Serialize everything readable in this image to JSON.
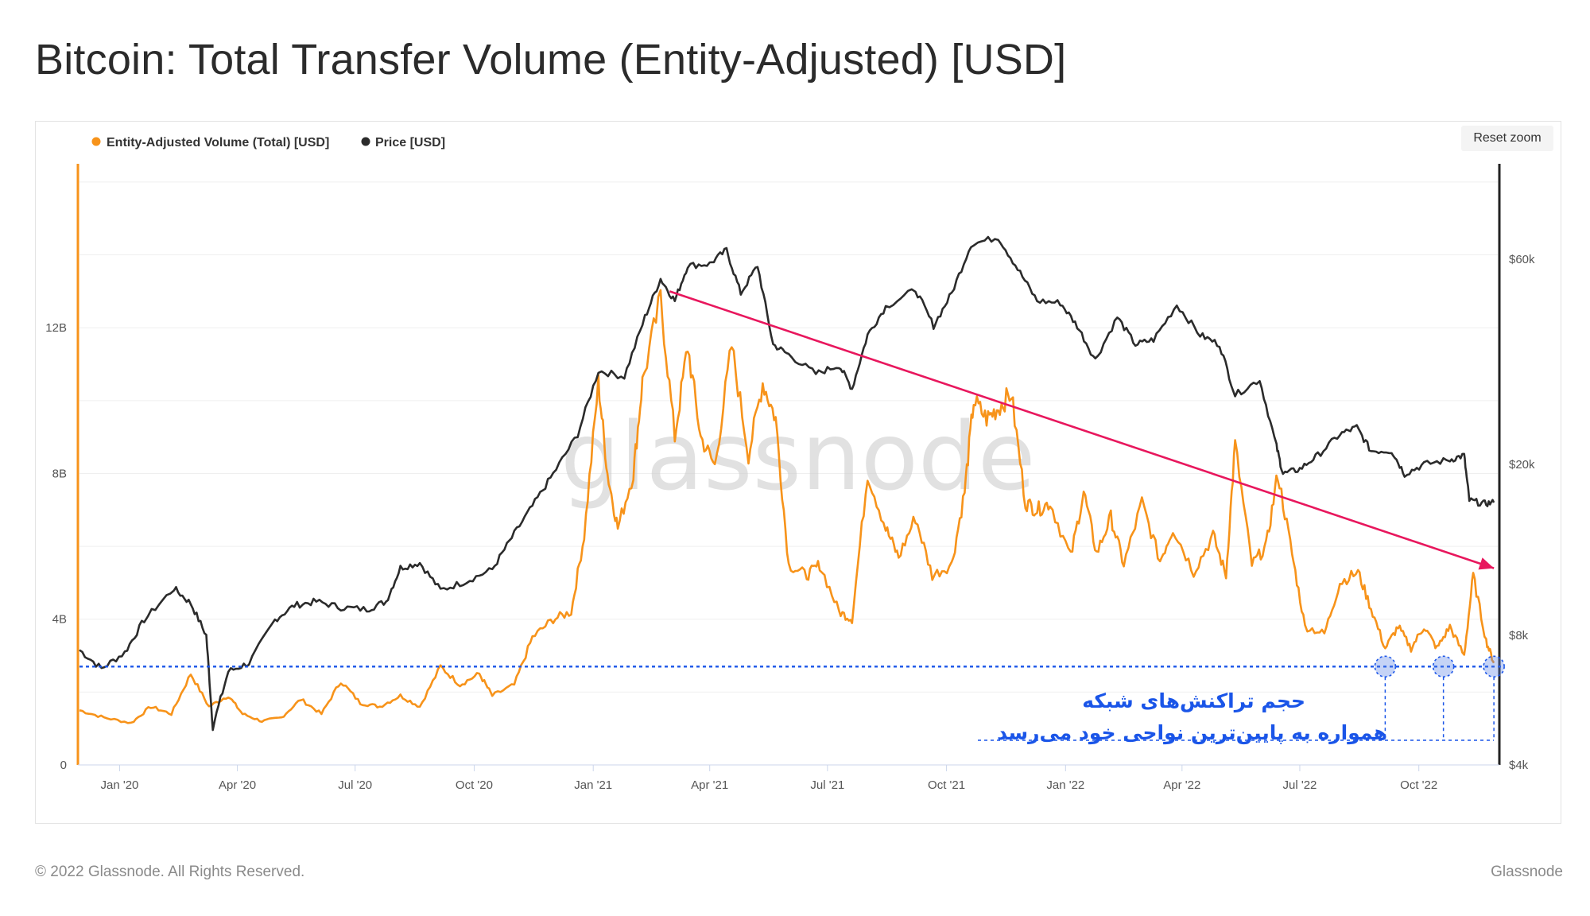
{
  "page": {
    "title": "Bitcoin: Total Transfer Volume (Entity-Adjusted) [USD]",
    "reset_zoom_label": "Reset zoom",
    "copyright": "© 2022 Glassnode. All Rights Reserved.",
    "brand": "Glassnode",
    "watermark": "glassnode"
  },
  "chart_data": {
    "type": "line",
    "title": "Bitcoin: Total Transfer Volume (Entity-Adjusted) [USD]",
    "x_ticks": [
      "Jan '20",
      "Apr '20",
      "Jul '20",
      "Oct '20",
      "Jan '21",
      "Apr '21",
      "Jul '21",
      "Oct '21",
      "Jan '22",
      "Apr '22",
      "Jul '22",
      "Oct '22"
    ],
    "x_range": [
      "2019-12-01",
      "2022-12-01"
    ],
    "y_left": {
      "ticks": [
        "0",
        "4B",
        "8B",
        "12B"
      ],
      "values": [
        0,
        4,
        8,
        12
      ],
      "range": [
        0,
        16.5
      ],
      "unit": "B USD"
    },
    "y_right": {
      "ticks": [
        "$4k",
        "$8k",
        "$20k",
        "$60k"
      ],
      "values": [
        4000,
        8000,
        20000,
        60000
      ],
      "scale": "log",
      "range": [
        4000,
        100000
      ]
    },
    "legend": {
      "position": "top-left"
    },
    "grid": true,
    "series": [
      {
        "name": "Entity-Adjusted Volume (Total) [USD]",
        "color": "#f7931a",
        "axis": "left",
        "points": [
          [
            "2019-12-01",
            1.5
          ],
          [
            "2019-12-20",
            1.3
          ],
          [
            "2020-01-10",
            1.15
          ],
          [
            "2020-01-25",
            1.6
          ],
          [
            "2020-02-10",
            1.4
          ],
          [
            "2020-02-25",
            2.5
          ],
          [
            "2020-03-10",
            1.6
          ],
          [
            "2020-03-25",
            1.9
          ],
          [
            "2020-04-05",
            1.4
          ],
          [
            "2020-04-20",
            1.2
          ],
          [
            "2020-05-05",
            1.3
          ],
          [
            "2020-05-20",
            1.8
          ],
          [
            "2020-06-05",
            1.4
          ],
          [
            "2020-06-20",
            2.3
          ],
          [
            "2020-07-05",
            1.7
          ],
          [
            "2020-07-20",
            1.6
          ],
          [
            "2020-08-05",
            1.9
          ],
          [
            "2020-08-20",
            1.6
          ],
          [
            "2020-09-05",
            2.7
          ],
          [
            "2020-09-20",
            2.2
          ],
          [
            "2020-10-05",
            2.5
          ],
          [
            "2020-10-15",
            1.9
          ],
          [
            "2020-11-01",
            2.2
          ],
          [
            "2020-11-15",
            3.5
          ],
          [
            "2020-12-01",
            4.0
          ],
          [
            "2020-12-15",
            4.2
          ],
          [
            "2020-12-25",
            6.3
          ],
          [
            "2021-01-05",
            10.5
          ],
          [
            "2021-01-12",
            8.0
          ],
          [
            "2021-01-20",
            6.5
          ],
          [
            "2021-02-01",
            8.0
          ],
          [
            "2021-02-08",
            10.5
          ],
          [
            "2021-02-22",
            12.8
          ],
          [
            "2021-03-05",
            9.0
          ],
          [
            "2021-03-15",
            11.5
          ],
          [
            "2021-03-25",
            9.0
          ],
          [
            "2021-04-05",
            8.2
          ],
          [
            "2021-04-18",
            11.5
          ],
          [
            "2021-05-01",
            8.5
          ],
          [
            "2021-05-12",
            10.5
          ],
          [
            "2021-05-22",
            9.5
          ],
          [
            "2021-06-01",
            5.5
          ],
          [
            "2021-06-15",
            5.2
          ],
          [
            "2021-06-25",
            5.5
          ],
          [
            "2021-07-10",
            4.2
          ],
          [
            "2021-07-20",
            4.0
          ],
          [
            "2021-08-01",
            8.0
          ],
          [
            "2021-08-15",
            6.5
          ],
          [
            "2021-08-25",
            5.7
          ],
          [
            "2021-09-07",
            6.8
          ],
          [
            "2021-09-20",
            5.2
          ],
          [
            "2021-10-05",
            5.5
          ],
          [
            "2021-10-15",
            7.5
          ],
          [
            "2021-10-22",
            10.0
          ],
          [
            "2021-11-01",
            9.5
          ],
          [
            "2021-11-10",
            9.8
          ],
          [
            "2021-11-20",
            10.2
          ],
          [
            "2021-12-01",
            7.2
          ],
          [
            "2021-12-10",
            7.0
          ],
          [
            "2021-12-20",
            7.2
          ],
          [
            "2022-01-05",
            5.7
          ],
          [
            "2022-01-15",
            7.5
          ],
          [
            "2022-01-25",
            5.8
          ],
          [
            "2022-02-05",
            6.8
          ],
          [
            "2022-02-15",
            5.5
          ],
          [
            "2022-03-01",
            7.2
          ],
          [
            "2022-03-15",
            5.6
          ],
          [
            "2022-03-25",
            6.5
          ],
          [
            "2022-04-10",
            5.3
          ],
          [
            "2022-04-25",
            6.3
          ],
          [
            "2022-05-05",
            5.2
          ],
          [
            "2022-05-12",
            8.8
          ],
          [
            "2022-05-25",
            5.5
          ],
          [
            "2022-06-05",
            6.0
          ],
          [
            "2022-06-14",
            8.0
          ],
          [
            "2022-06-25",
            5.8
          ],
          [
            "2022-07-05",
            3.8
          ],
          [
            "2022-07-20",
            3.6
          ],
          [
            "2022-08-01",
            5.0
          ],
          [
            "2022-08-15",
            5.3
          ],
          [
            "2022-08-25",
            4.3
          ],
          [
            "2022-09-05",
            3.2
          ],
          [
            "2022-09-15",
            3.8
          ],
          [
            "2022-09-25",
            3.2
          ],
          [
            "2022-10-05",
            3.8
          ],
          [
            "2022-10-15",
            3.2
          ],
          [
            "2022-10-25",
            3.8
          ],
          [
            "2022-11-05",
            3.0
          ],
          [
            "2022-11-12",
            5.2
          ],
          [
            "2022-11-22",
            3.4
          ],
          [
            "2022-11-28",
            2.8
          ]
        ]
      },
      {
        "name": "Price [USD]",
        "color": "#2b2b2b",
        "axis": "right",
        "points": [
          [
            "2019-12-01",
            7400
          ],
          [
            "2019-12-18",
            6700
          ],
          [
            "2020-01-05",
            7300
          ],
          [
            "2020-01-20",
            8700
          ],
          [
            "2020-02-12",
            10300
          ],
          [
            "2020-02-25",
            9500
          ],
          [
            "2020-03-08",
            8000
          ],
          [
            "2020-03-13",
            4900
          ],
          [
            "2020-03-25",
            6600
          ],
          [
            "2020-04-10",
            6900
          ],
          [
            "2020-04-30",
            8700
          ],
          [
            "2020-05-15",
            9400
          ],
          [
            "2020-06-01",
            9600
          ],
          [
            "2020-06-20",
            9300
          ],
          [
            "2020-07-10",
            9200
          ],
          [
            "2020-07-25",
            9600
          ],
          [
            "2020-08-05",
            11500
          ],
          [
            "2020-08-20",
            11800
          ],
          [
            "2020-09-05",
            10200
          ],
          [
            "2020-09-25",
            10700
          ],
          [
            "2020-10-15",
            11400
          ],
          [
            "2020-10-30",
            13500
          ],
          [
            "2020-11-15",
            16000
          ],
          [
            "2020-12-01",
            19000
          ],
          [
            "2020-12-20",
            23500
          ],
          [
            "2021-01-05",
            33000
          ],
          [
            "2021-01-25",
            32000
          ],
          [
            "2021-02-10",
            44000
          ],
          [
            "2021-02-22",
            54000
          ],
          [
            "2021-03-05",
            48000
          ],
          [
            "2021-03-15",
            58000
          ],
          [
            "2021-04-01",
            58500
          ],
          [
            "2021-04-14",
            63000
          ],
          [
            "2021-04-25",
            50000
          ],
          [
            "2021-05-08",
            58000
          ],
          [
            "2021-05-20",
            38000
          ],
          [
            "2021-06-01",
            36000
          ],
          [
            "2021-06-22",
            32500
          ],
          [
            "2021-07-10",
            34000
          ],
          [
            "2021-07-20",
            30000
          ],
          [
            "2021-08-01",
            40000
          ],
          [
            "2021-08-15",
            46500
          ],
          [
            "2021-09-07",
            51000
          ],
          [
            "2021-09-21",
            42000
          ],
          [
            "2021-10-05",
            50000
          ],
          [
            "2021-10-20",
            65000
          ],
          [
            "2021-11-10",
            67500
          ],
          [
            "2021-11-25",
            57000
          ],
          [
            "2021-12-10",
            48000
          ],
          [
            "2021-12-28",
            47500
          ],
          [
            "2022-01-10",
            42000
          ],
          [
            "2022-01-24",
            35000
          ],
          [
            "2022-02-10",
            44000
          ],
          [
            "2022-02-24",
            38000
          ],
          [
            "2022-03-10",
            39000
          ],
          [
            "2022-03-28",
            47000
          ],
          [
            "2022-04-15",
            40000
          ],
          [
            "2022-04-30",
            38000
          ],
          [
            "2022-05-12",
            29000
          ],
          [
            "2022-05-31",
            31500
          ],
          [
            "2022-06-13",
            22000
          ],
          [
            "2022-06-18",
            19000
          ],
          [
            "2022-07-01",
            19500
          ],
          [
            "2022-07-15",
            21000
          ],
          [
            "2022-08-01",
            23500
          ],
          [
            "2022-08-14",
            24400
          ],
          [
            "2022-08-25",
            21500
          ],
          [
            "2022-09-10",
            21500
          ],
          [
            "2022-09-20",
            19000
          ],
          [
            "2022-10-05",
            20000
          ],
          [
            "2022-10-25",
            20500
          ],
          [
            "2022-11-05",
            21000
          ],
          [
            "2022-11-09",
            16500
          ],
          [
            "2022-11-20",
            16200
          ],
          [
            "2022-11-28",
            16300
          ]
        ]
      }
    ],
    "annotations": [
      {
        "type": "trend-arrow",
        "color": "#e8175d",
        "from": [
          "2021-03-01",
          13.0
        ],
        "to": [
          "2022-11-28",
          5.4
        ]
      },
      {
        "type": "support-line",
        "color": "#1a55e8",
        "y": 2.7,
        "style": "dotted"
      },
      {
        "type": "marker",
        "color": "#1a55e8",
        "x": "2022-09-05",
        "y": 2.7
      },
      {
        "type": "marker",
        "color": "#1a55e8",
        "x": "2022-10-20",
        "y": 2.7
      },
      {
        "type": "marker",
        "color": "#1a55e8",
        "x": "2022-11-28",
        "y": 2.7
      }
    ],
    "annotation_text": [
      "حجم تراکنش‌های شبکه",
      "همواره به پایین‌ترین  نواحی خود می‌رسد"
    ]
  }
}
